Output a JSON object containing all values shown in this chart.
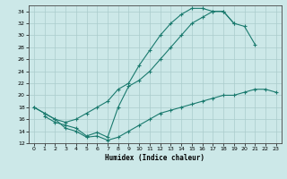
{
  "xlabel": "Humidex (Indice chaleur)",
  "background_color": "#cce8e8",
  "grid_color": "#aacccc",
  "line_color": "#1a7a6e",
  "xlim": [
    -0.5,
    23.5
  ],
  "ylim": [
    12,
    35
  ],
  "yticks": [
    12,
    14,
    16,
    18,
    20,
    22,
    24,
    26,
    28,
    30,
    32,
    34
  ],
  "xticks": [
    0,
    1,
    2,
    3,
    4,
    5,
    6,
    7,
    8,
    9,
    10,
    11,
    12,
    13,
    14,
    15,
    16,
    17,
    18,
    19,
    20,
    21,
    22,
    23
  ],
  "line1_x": [
    0,
    1,
    2,
    3,
    4,
    5,
    6,
    7,
    8,
    9,
    10,
    11,
    12,
    13,
    14,
    15,
    16,
    17,
    18,
    19
  ],
  "line1_y": [
    18,
    17,
    16,
    15.5,
    16,
    17,
    18,
    19,
    21,
    22,
    25,
    27.5,
    30,
    32,
    33.5,
    34.5,
    34.5,
    34,
    34,
    32
  ],
  "line2_x": [
    1,
    2,
    3,
    4,
    5,
    6,
    7,
    8,
    9,
    10,
    11,
    12,
    13,
    14,
    15,
    16,
    17,
    18,
    19,
    20,
    21
  ],
  "line2_y": [
    16.5,
    15.5,
    15,
    14.5,
    13.2,
    13.8,
    13,
    18,
    21.5,
    22.5,
    24,
    26,
    28,
    30,
    32,
    33,
    34,
    34,
    32,
    31.5,
    28.5
  ],
  "line3_x": [
    0,
    1,
    2,
    3,
    4,
    5,
    6,
    7,
    8,
    9,
    10,
    11,
    12,
    13,
    14,
    15,
    16,
    17,
    18,
    19,
    20,
    21,
    22,
    23
  ],
  "line3_y": [
    18,
    17,
    16,
    14.5,
    14,
    13,
    13.2,
    12.5,
    13,
    14,
    15,
    16,
    17,
    17.5,
    18,
    18.5,
    19,
    19.5,
    20,
    20,
    20.5,
    21,
    21,
    20.5
  ]
}
